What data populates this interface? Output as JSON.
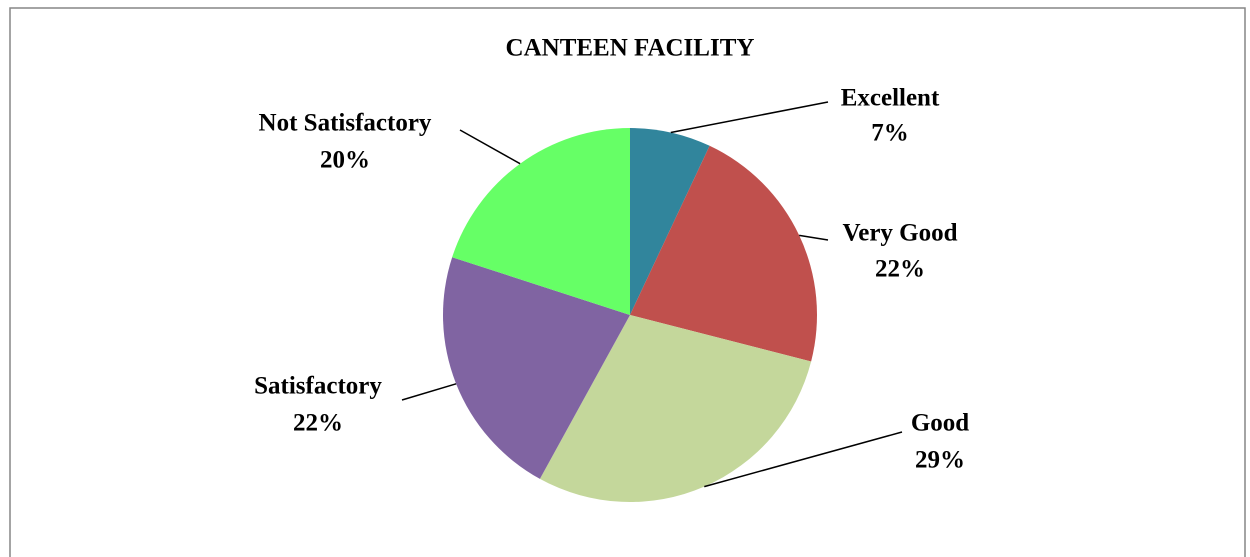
{
  "chart_data": {
    "type": "pie",
    "title": "CANTEEN FACILITY",
    "categories": [
      "Excellent",
      "Very Good",
      "Good",
      "Satisfactory",
      "Not Satisfactory"
    ],
    "values": [
      7,
      22,
      29,
      22,
      20
    ],
    "value_labels": [
      "7%",
      "22%",
      "29%",
      "22%",
      "20%"
    ],
    "colors": [
      "#31859c",
      "#c0504d",
      "#c4d79b",
      "#8064a2",
      "#66ff66"
    ]
  }
}
